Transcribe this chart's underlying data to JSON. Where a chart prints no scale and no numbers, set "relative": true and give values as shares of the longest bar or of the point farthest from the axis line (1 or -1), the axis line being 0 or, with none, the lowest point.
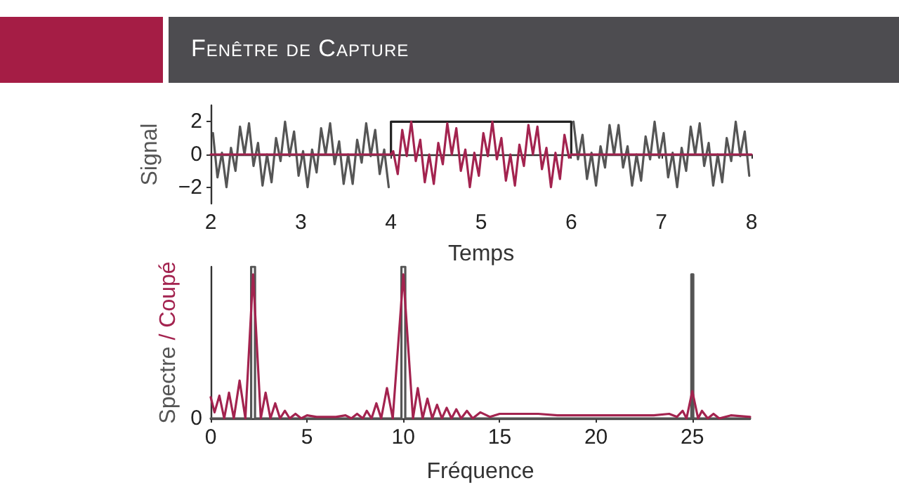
{
  "chart_data": [
    {
      "type": "line",
      "title": "Fenêtre de Capture",
      "xlabel": "Temps",
      "ylabel": "Signal",
      "xlim": [
        2,
        8
      ],
      "xticks": [
        2,
        3,
        4,
        5,
        6,
        7,
        8
      ],
      "ylim": [
        -3,
        3
      ],
      "yticks": [
        {
          "value": -2,
          "label": "−2"
        },
        0,
        2
      ],
      "marker": "none",
      "series": [
        {
          "color": "#555555",
          "x": [
            2.025,
            2.075,
            2.125,
            2.175,
            2.225,
            2.275,
            2.325,
            2.375,
            2.425,
            2.475,
            2.525,
            2.575,
            2.625,
            2.675,
            2.725,
            2.775,
            2.825,
            2.875,
            2.925,
            2.975,
            3.025,
            3.075,
            3.125,
            3.175,
            3.225,
            3.275,
            3.325,
            3.375,
            3.425,
            3.475,
            3.525,
            3.575,
            3.625,
            3.675,
            3.725,
            3.775,
            3.825,
            3.875,
            3.925,
            3.975,
            5,
            6.025,
            6.075,
            6.125,
            6.175,
            6.225,
            6.275,
            6.325,
            6.375,
            6.425,
            6.475,
            6.525,
            6.575,
            6.625,
            6.675,
            6.725,
            6.775,
            6.825,
            6.875,
            6.925,
            6.975,
            7.025,
            7.075,
            7.125,
            7.175,
            7.225,
            7.275,
            7.325,
            7.375,
            7.425,
            7.475,
            7.525,
            7.575,
            7.625,
            7.675,
            7.725,
            7.775,
            7.825,
            7.875,
            7.925,
            7.975
          ],
          "values": [
            1.3,
            -1.4,
            0.1,
            -2.0,
            0.4,
            -1.0,
            1.7,
            0.0,
            1.9,
            -0.7,
            0.7,
            -1.9,
            0.0,
            -1.7,
            1.0,
            -0.4,
            2.0,
            -0.1,
            1.4,
            -1.3,
            0.2,
            -2.0,
            0.3,
            -1.1,
            1.6,
            0.0,
            1.9,
            -0.6,
            0.8,
            -1.8,
            0.0,
            -1.8,
            0.9,
            -0.5,
            1.9,
            -0.1,
            1.5,
            -1.2,
            0.3,
            -2.0,
            null,
            2.0,
            -0.3,
            1.2,
            -1.5,
            0.1,
            -1.9,
            0.5,
            -0.8,
            1.8,
            0.0,
            1.8,
            -0.8,
            0.5,
            -1.9,
            0.0,
            -1.6,
            1.1,
            -0.3,
            2.0,
            -0.2,
            1.3,
            -1.4,
            0.1,
            -2.0,
            0.4,
            -1.0,
            1.7,
            0.0,
            1.9,
            -0.7,
            0.7,
            -1.9,
            0.0,
            -1.7,
            1.0,
            -0.4,
            2.0,
            -0.1,
            1.4,
            -1.3
          ]
        },
        {
          "color": "#222222",
          "x": [
            4,
            4,
            6,
            6
          ],
          "values": [
            0,
            2,
            2,
            0
          ]
        },
        {
          "color": "#a3234f",
          "x": [
            2,
            4,
            4.025,
            4.075,
            4.125,
            4.175,
            4.225,
            4.275,
            4.325,
            4.375,
            4.425,
            4.475,
            4.525,
            4.575,
            4.625,
            4.675,
            4.725,
            4.775,
            4.825,
            4.875,
            4.925,
            4.975,
            5.025,
            5.075,
            5.125,
            5.175,
            5.225,
            5.275,
            5.325,
            5.375,
            5.425,
            5.475,
            5.525,
            5.575,
            5.625,
            5.675,
            5.725,
            5.775,
            5.825,
            5.875,
            5.925,
            5.975,
            6,
            8
          ],
          "values": [
            0,
            0,
            0.2,
            -1.2,
            1.5,
            -0.1,
            2.0,
            -0.4,
            0.9,
            -1.7,
            0.0,
            -1.8,
            0.7,
            -0.6,
            1.9,
            0.0,
            1.6,
            -1.0,
            0.3,
            -2.0,
            0.1,
            -1.3,
            1.3,
            -0.1,
            2.0,
            -0.3,
            1.0,
            -1.6,
            0.0,
            -1.9,
            0.6,
            -0.7,
            1.8,
            0.0,
            1.7,
            -0.9,
            0.4,
            -2.0,
            0.1,
            -1.5,
            1.2,
            -0.2,
            0,
            0
          ]
        }
      ]
    },
    {
      "type": "line",
      "xlabel": "Fréquence",
      "ylabel": "Spectre / Coupé",
      "relative": true,
      "xlim": [
        0,
        28
      ],
      "xticks": [
        0,
        5,
        10,
        15,
        20,
        25
      ],
      "annotations": [
        {
          "text": "0",
          "x": 0,
          "y": 0
        }
      ],
      "grid": false,
      "marker": "none",
      "series": [
        {
          "color": "#555555",
          "x": [
            0,
            2.1,
            2.1,
            2.3,
            2.3,
            9.9,
            9.9,
            10.1,
            10.1,
            24.95,
            24.95,
            25.05,
            25.05,
            28
          ],
          "values": [
            0,
            0,
            1,
            1,
            0,
            0,
            1,
            1,
            0,
            0,
            0.95,
            0.95,
            0,
            0
          ]
        },
        {
          "color": "#a3234f",
          "x": [
            0,
            0.2,
            0.45,
            0.7,
            0.95,
            1.2,
            1.5,
            1.8,
            2.2,
            2.6,
            2.85,
            3.1,
            3.35,
            3.6,
            3.85,
            4.1,
            4.4,
            4.7,
            5,
            5.5,
            6,
            6.5,
            7,
            7.3,
            7.6,
            7.9,
            8.1,
            8.35,
            8.6,
            8.85,
            9.15,
            9.45,
            10,
            10.5,
            10.75,
            11,
            11.25,
            11.5,
            11.75,
            12,
            12.25,
            12.5,
            12.75,
            13,
            13.3,
            13.6,
            14,
            14.5,
            15,
            16,
            17,
            18,
            19,
            20,
            21,
            22,
            23,
            23.8,
            24.2,
            24.5,
            24.7,
            25,
            25.3,
            25.5,
            25.8,
            26.1,
            26.4,
            27,
            28
          ],
          "values": [
            0.14,
            0.04,
            0.15,
            0,
            0.17,
            0,
            0.25,
            0,
            0.95,
            0,
            0.17,
            0,
            0.1,
            0,
            0.05,
            0,
            0.03,
            0,
            0.02,
            0.01,
            0.01,
            0.01,
            0.02,
            0,
            0.03,
            0,
            0.05,
            0,
            0.1,
            0,
            0.2,
            0,
            0.95,
            0,
            0.2,
            0,
            0.13,
            0,
            0.09,
            0,
            0.07,
            0,
            0.06,
            0,
            0.05,
            0,
            0.04,
            0.01,
            0.03,
            0.03,
            0.03,
            0.02,
            0.02,
            0.02,
            0.02,
            0.02,
            0.02,
            0.03,
            0.01,
            0.05,
            0,
            0.18,
            0,
            0.05,
            0,
            0.03,
            0,
            0.02,
            0.01
          ]
        }
      ]
    }
  ]
}
